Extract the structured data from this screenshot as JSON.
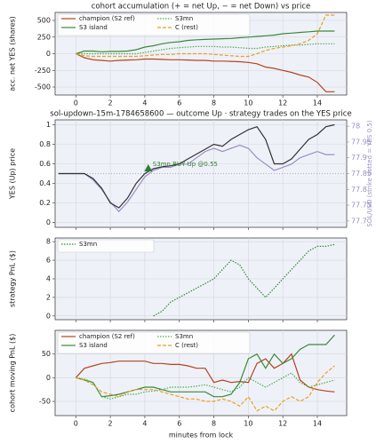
{
  "chart_data": [
    {
      "type": "line",
      "title": "cohort accumulation (+ = net Up, − = net Down) vs price",
      "ylabel": "acc. net YES (shares)",
      "x": [
        0,
        0.5,
        1,
        1.5,
        2,
        2.5,
        3,
        3.5,
        4,
        4.5,
        5,
        5.5,
        6,
        6.5,
        7,
        7.5,
        8,
        8.5,
        9,
        9.5,
        10,
        10.5,
        11,
        11.5,
        12,
        12.5,
        13,
        13.5,
        14,
        14.5,
        15
      ],
      "xlim": [
        -1.2,
        15.7
      ],
      "xticks": [
        0,
        2,
        4,
        6,
        8,
        10,
        12,
        14
      ],
      "ylim": [
        -620,
        620
      ],
      "yticks": [
        -500,
        -250,
        0,
        250,
        500
      ],
      "grid": true,
      "series": [
        {
          "name": "champion (S2 ref)",
          "color": "#b5431c",
          "style": "solid",
          "values": [
            0,
            -60,
            -90,
            -100,
            -110,
            -100,
            -95,
            -90,
            -80,
            -80,
            -85,
            -90,
            -90,
            -95,
            -100,
            -100,
            -110,
            -110,
            -115,
            -120,
            -130,
            -150,
            -200,
            -220,
            -250,
            -280,
            -320,
            -350,
            -430,
            -570,
            -570
          ]
        },
        {
          "name": "S3 island",
          "color": "#3a8a3a",
          "style": "solid",
          "values": [
            0,
            40,
            40,
            30,
            35,
            35,
            40,
            60,
            100,
            120,
            150,
            170,
            180,
            200,
            210,
            215,
            220,
            225,
            230,
            240,
            250,
            260,
            270,
            280,
            300,
            310,
            320,
            330,
            340,
            340,
            340
          ]
        },
        {
          "name": "S3mn",
          "color": "#4caf50",
          "style": "dotted",
          "values": [
            0,
            0,
            0,
            0,
            0,
            0,
            0,
            0,
            20,
            40,
            60,
            80,
            90,
            100,
            110,
            110,
            110,
            100,
            100,
            90,
            80,
            80,
            100,
            110,
            120,
            130,
            130,
            140,
            150,
            150,
            150
          ]
        },
        {
          "name": "C (rest)",
          "color": "#e8a020",
          "style": "dashed",
          "values": [
            0,
            -30,
            -40,
            -40,
            -40,
            -40,
            -40,
            -40,
            -30,
            -20,
            -10,
            -10,
            0,
            0,
            0,
            0,
            -10,
            -20,
            -30,
            -40,
            -40,
            0,
            50,
            80,
            100,
            120,
            150,
            200,
            300,
            580,
            580
          ]
        }
      ]
    },
    {
      "type": "line",
      "title": "sol-updown-15m-1784658600 — outcome Up · strategy trades on the YES price",
      "ylabel": "YES (Up) price",
      "y2label": "SOL/USD (strike dotted = YES 0.5)",
      "x": [
        -1,
        -0.5,
        0,
        0.5,
        1,
        1.5,
        2,
        2.5,
        3,
        3.5,
        4,
        4.5,
        5,
        5.5,
        6,
        6.5,
        7,
        7.5,
        8,
        8.5,
        9,
        9.5,
        10,
        10.5,
        11,
        11.5,
        12,
        12.5,
        13,
        13.5,
        14,
        14.5,
        15
      ],
      "xlim": [
        -1.2,
        15.7
      ],
      "xticks": [
        0,
        2,
        4,
        6,
        8,
        10,
        12,
        14
      ],
      "ylim": [
        -0.05,
        1.05
      ],
      "yticks": [
        0.0,
        0.2,
        0.4,
        0.6,
        0.8,
        1.0
      ],
      "y2lim": [
        77.68,
        78.02
      ],
      "y2ticks": [
        77.7,
        77.75,
        77.8,
        77.85,
        77.9,
        77.95,
        78.0
      ],
      "grid": true,
      "hline": 0.5,
      "series": [
        {
          "color": "#9b8fc4",
          "style": "solid",
          "axis": "y2",
          "values": [
            77.85,
            77.85,
            77.85,
            77.85,
            77.83,
            77.8,
            77.76,
            77.73,
            77.76,
            77.8,
            77.84,
            77.86,
            77.87,
            77.87,
            77.88,
            77.88,
            77.9,
            77.92,
            77.93,
            77.92,
            77.93,
            77.94,
            77.93,
            77.9,
            77.88,
            77.86,
            77.87,
            77.88,
            77.9,
            77.91,
            77.92,
            77.91,
            77.91
          ]
        },
        {
          "color": "#333333",
          "style": "solid",
          "values": [
            0.5,
            0.5,
            0.5,
            0.5,
            0.45,
            0.35,
            0.2,
            0.15,
            0.25,
            0.4,
            0.5,
            0.55,
            0.57,
            0.58,
            0.6,
            0.65,
            0.7,
            0.75,
            0.8,
            0.78,
            0.85,
            0.9,
            0.95,
            0.98,
            0.85,
            0.6,
            0.6,
            0.65,
            0.75,
            0.85,
            0.9,
            0.98,
            1.0
          ]
        }
      ],
      "markers": [
        {
          "x": 4.2,
          "y": 0.55,
          "label": "S3mn BUY Up @0.55",
          "color": "#2e7d32"
        }
      ]
    },
    {
      "type": "line",
      "ylabel": "strategy PnL ($)",
      "x": [
        4.5,
        5,
        5.5,
        6,
        6.5,
        7,
        7.5,
        8,
        8.5,
        9,
        9.5,
        10,
        10.5,
        11,
        11.5,
        12,
        12.5,
        13,
        13.5,
        14,
        14.5,
        15
      ],
      "xlim": [
        -1.2,
        15.7
      ],
      "xticks": [
        0,
        2,
        4,
        6,
        8,
        10,
        12,
        14
      ],
      "ylim": [
        -0.4,
        8.4
      ],
      "yticks": [
        0,
        2,
        4,
        6,
        8
      ],
      "grid": true,
      "series": [
        {
          "name": "S3mn",
          "color": "#2e8b2e",
          "style": "dotted",
          "values": [
            0,
            0.5,
            1.5,
            2,
            2.5,
            3,
            3.5,
            4,
            5,
            6,
            5.5,
            4,
            3,
            2,
            3,
            4,
            5,
            6,
            7,
            7.5,
            7.5,
            7.7
          ]
        }
      ]
    },
    {
      "type": "line",
      "ylabel": "cohort moving PnL ($)",
      "xlabel": "minutes from lock",
      "x": [
        0,
        0.5,
        1,
        1.5,
        2,
        2.5,
        3,
        3.5,
        4,
        4.5,
        5,
        5.5,
        6,
        6.5,
        7,
        7.5,
        8,
        8.5,
        9,
        9.5,
        10,
        10.5,
        11,
        11.5,
        12,
        12.5,
        13,
        13.5,
        14,
        14.5,
        15
      ],
      "xlim": [
        -1.2,
        15.7
      ],
      "xticks": [
        0,
        2,
        4,
        6,
        8,
        10,
        12,
        14
      ],
      "ylim": [
        -80,
        100
      ],
      "yticks": [
        -50,
        0,
        50
      ],
      "grid": true,
      "series": [
        {
          "name": "champion (S2 ref)",
          "color": "#b5431c",
          "style": "solid",
          "values": [
            0,
            20,
            25,
            30,
            32,
            35,
            35,
            35,
            35,
            30,
            30,
            28,
            28,
            25,
            20,
            20,
            -10,
            -5,
            -10,
            -8,
            -10,
            30,
            40,
            20,
            30,
            50,
            -5,
            -20,
            -25,
            -28,
            -30
          ]
        },
        {
          "name": "S3 island",
          "color": "#3a8a3a",
          "style": "solid",
          "values": [
            0,
            -5,
            -10,
            -40,
            -38,
            -35,
            -30,
            -25,
            -20,
            -20,
            -25,
            -30,
            -30,
            -30,
            -30,
            -30,
            -40,
            -40,
            -35,
            -10,
            40,
            50,
            20,
            50,
            30,
            40,
            60,
            70,
            70,
            70,
            90
          ]
        },
        {
          "name": "S3mn",
          "color": "#4caf50",
          "style": "dotted",
          "values": [
            0,
            -3,
            -10,
            -40,
            -45,
            -40,
            -35,
            -35,
            -30,
            -28,
            -25,
            -20,
            -20,
            -20,
            -18,
            -15,
            -20,
            -25,
            -30,
            -20,
            0,
            -10,
            -20,
            -10,
            0,
            10,
            -10,
            -20,
            -15,
            -10,
            -5
          ]
        },
        {
          "name": "C (rest)",
          "color": "#e8a020",
          "style": "dashed",
          "values": [
            0,
            -5,
            -15,
            -30,
            -35,
            -40,
            -30,
            -25,
            -25,
            -25,
            -30,
            -35,
            -40,
            -45,
            -45,
            -50,
            -50,
            -45,
            -50,
            -60,
            -40,
            -70,
            -60,
            -70,
            -50,
            -40,
            -50,
            -40,
            -10,
            10,
            25
          ]
        }
      ]
    }
  ]
}
